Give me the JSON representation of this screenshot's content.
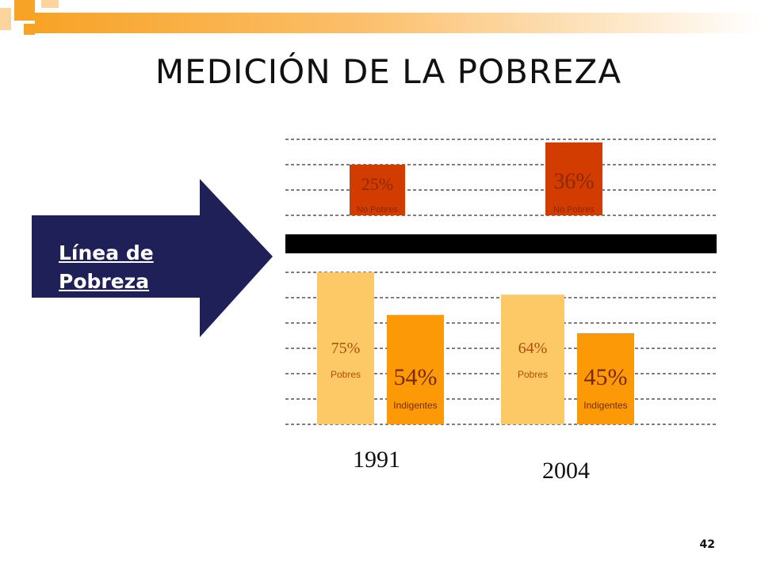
{
  "slide": {
    "title": "MEDICIÓN DE LA POBREZA",
    "page_number": "42",
    "arrow_label": "Línea de Pobreza",
    "colors": {
      "arrow": "#1e2057",
      "poverty_line": "#000000",
      "pobres": "#fdc966",
      "indigentes": "#fb9a06",
      "no_pobres": "#d23c00",
      "grid": "#000000",
      "deco_orange": "#f7a326",
      "deco_light": "#fcd49c"
    }
  },
  "chart_data": {
    "type": "bar",
    "title": "",
    "groups": [
      {
        "year": "1991",
        "bars": [
          {
            "name": "Pobres",
            "value": 75,
            "label": "75%",
            "position": "below-line",
            "color_key": "pobres"
          },
          {
            "name": "Indigentes",
            "value": 54,
            "label": "54%",
            "position": "below-line",
            "color_key": "indigentes"
          },
          {
            "name": "No Pobres",
            "value": 25,
            "label": "25%",
            "position": "above-line",
            "color_key": "no_pobres"
          }
        ]
      },
      {
        "year": "2004",
        "bars": [
          {
            "name": "Pobres",
            "value": 64,
            "label": "64%",
            "position": "below-line",
            "color_key": "pobres"
          },
          {
            "name": "Indigentes",
            "value": 45,
            "label": "45%",
            "position": "below-line",
            "color_key": "indigentes"
          },
          {
            "name": "No Pobres",
            "value": 36,
            "label": "36%",
            "position": "above-line",
            "color_key": "no_pobres"
          }
        ]
      }
    ],
    "reference_line": "Línea de Pobreza",
    "grid": true,
    "legend": "none"
  }
}
